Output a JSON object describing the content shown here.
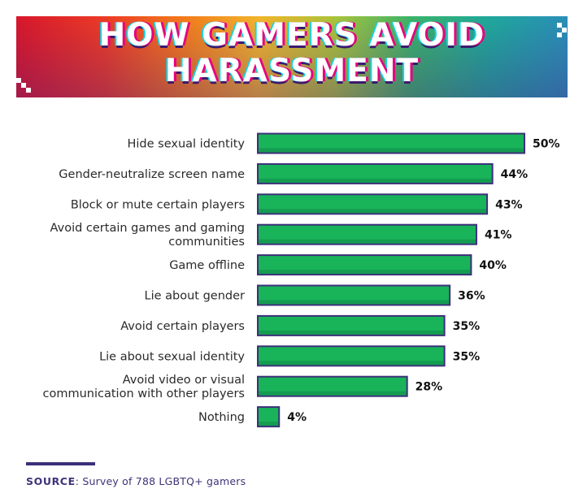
{
  "title_lines": [
    "HOW GAMERS AVOID",
    "HARASSMENT"
  ],
  "chart_data": {
    "type": "bar",
    "orientation": "horizontal",
    "categories": [
      [
        "Hide sexual identity"
      ],
      [
        "Gender-neutralize screen name"
      ],
      [
        "Block or mute certain players"
      ],
      [
        "Avoid certain games and gaming",
        "communities"
      ],
      [
        "Game offline"
      ],
      [
        "Lie about gender"
      ],
      [
        "Avoid certain players"
      ],
      [
        "Lie about sexual identity"
      ],
      [
        "Avoid video or visual",
        "communication with other players"
      ],
      [
        "Nothing"
      ]
    ],
    "values": [
      50,
      44,
      43,
      41,
      40,
      36,
      35,
      35,
      28,
      4
    ],
    "value_labels": [
      "50%",
      "44%",
      "43%",
      "41%",
      "40%",
      "36%",
      "35%",
      "35%",
      "28%",
      "4%"
    ],
    "unit": "%",
    "xlim": [
      0,
      50
    ],
    "grid": false,
    "legend": "none",
    "colors": {
      "bar_fill": "#19b35a",
      "bar_border": "#3d2f7a",
      "bar_shade": "#10894a"
    }
  },
  "source": {
    "label": "SOURCE",
    "text": "Survey of 788 LGBTQ+ gamers"
  },
  "colors": {
    "source_text": "#3d3478",
    "rule": "#3d2f7a"
  }
}
